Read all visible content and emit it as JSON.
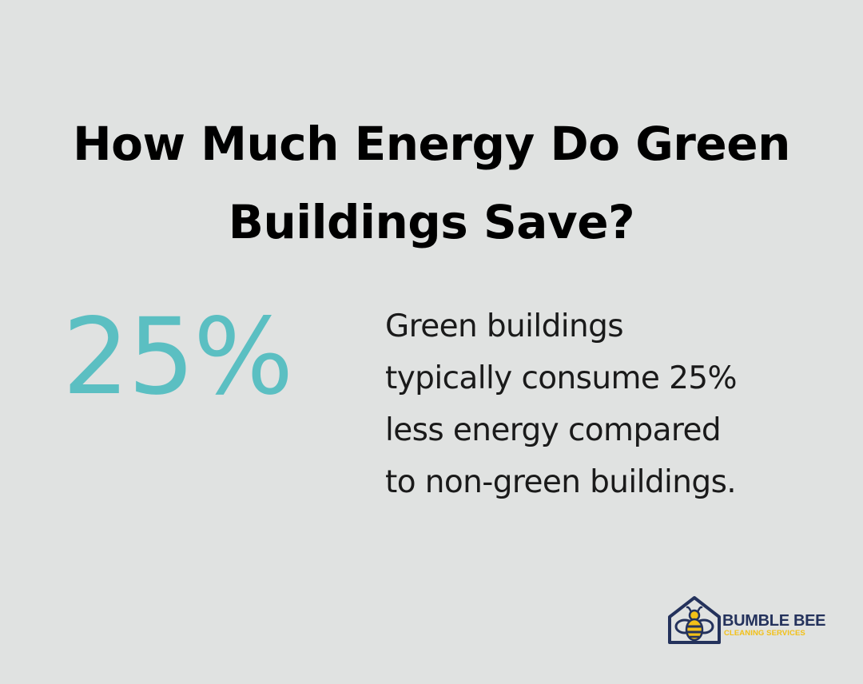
{
  "heading": {
    "line1": "How Much Energy Do Green",
    "line2": "Buildings Save?"
  },
  "stat": {
    "value": "25%",
    "description_lines": [
      "Green buildings",
      "typically consume 25%",
      "less energy compared",
      "to non-green buildings."
    ]
  },
  "logo": {
    "name": "BUMBLE BEE",
    "tagline": "CLEANING SERVICES",
    "icon": "bee-house-icon"
  },
  "colors": {
    "background": "#e0e2e1",
    "accent": "#5bbfc2",
    "brand_navy": "#24325c",
    "brand_yellow": "#f2c018"
  }
}
